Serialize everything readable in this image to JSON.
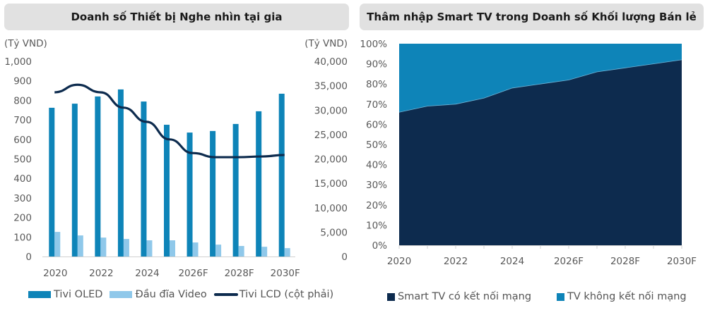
{
  "colors": {
    "oled": "#0e84b8",
    "video": "#8fc8ea",
    "lcd": "#0d2b4e",
    "smart": "#0d2b4e",
    "non_smart": "#0e84b8",
    "axis_text": "#595959",
    "title_bg": "#e1e1e1"
  },
  "left": {
    "title": "Doanh số Thiết bị Nghe nhìn tại gia",
    "unit_left": "(Tỷ VND)",
    "unit_right": "(Tỷ VND)",
    "legend": [
      "Tivi OLED",
      "Đầu đĩa Video",
      "Tivi LCD (cột phải)"
    ]
  },
  "right": {
    "title": "Thâm nhập Smart TV trong Doanh số Khối lượng Bán lẻ",
    "legend": [
      "Smart TV có kết nối mạng",
      "TV không kết nối mạng"
    ]
  },
  "chart_data": [
    {
      "type": "bar",
      "title": "Doanh số Thiết bị Nghe nhìn tại gia",
      "x": [
        "2020",
        "2021",
        "2022",
        "2023",
        "2024",
        "2025",
        "2026F",
        "2027F",
        "2028F",
        "2029F",
        "2030F"
      ],
      "x_tick_labels": [
        "2020",
        "2022",
        "2024",
        "2026F",
        "2028F",
        "2030F"
      ],
      "ylabel": "(Tỷ VND)",
      "ylim": [
        0,
        1000
      ],
      "y_ticks": [
        "0",
        "100",
        "200",
        "300",
        "400",
        "500",
        "600",
        "700",
        "800",
        "900",
        "1,000"
      ],
      "y2label": "(Tỷ VND)",
      "y2lim": [
        0,
        40000
      ],
      "y2_ticks": [
        "0",
        "5,000",
        "10,000",
        "15,000",
        "20,000",
        "25,000",
        "30,000",
        "35,000",
        "40,000"
      ],
      "grid": false,
      "legend_position": "bottom",
      "series": [
        {
          "name": "Tivi OLED",
          "type": "bar",
          "axis": "left",
          "values": [
            762,
            783,
            820,
            856,
            794,
            675,
            635,
            643,
            679,
            744,
            834
          ]
        },
        {
          "name": "Đầu đĩa Video",
          "type": "bar",
          "axis": "left",
          "values": [
            126,
            108,
            97,
            90,
            83,
            83,
            72,
            61,
            54,
            50,
            43
          ]
        },
        {
          "name": "Tivi LCD (cột phải)",
          "type": "line",
          "axis": "right",
          "values": [
            33650,
            35200,
            33650,
            30500,
            27600,
            24000,
            21200,
            20350,
            20350,
            20500,
            20800
          ]
        }
      ]
    },
    {
      "type": "area",
      "stacked": true,
      "title": "Thâm nhập Smart TV trong Doanh số Khối lượng Bán lẻ",
      "x": [
        "2020",
        "2021",
        "2022",
        "2023",
        "2024",
        "2025",
        "2026F",
        "2027F",
        "2028F",
        "2029F",
        "2030F"
      ],
      "x_tick_labels": [
        "2020",
        "2022",
        "2024",
        "2026F",
        "2028F",
        "2030F"
      ],
      "ylim": [
        0,
        100
      ],
      "y_ticks": [
        "0%",
        "10%",
        "20%",
        "30%",
        "40%",
        "50%",
        "60%",
        "70%",
        "80%",
        "90%",
        "100%"
      ],
      "grid": false,
      "legend_position": "bottom",
      "series": [
        {
          "name": "Smart TV có kết nối mạng",
          "values": [
            66,
            69,
            70,
            73,
            78,
            80,
            82,
            86,
            88,
            90,
            92
          ]
        },
        {
          "name": "TV không kết nối mạng",
          "values": [
            34,
            31,
            30,
            27,
            22,
            20,
            18,
            14,
            12,
            10,
            8
          ]
        }
      ]
    }
  ]
}
